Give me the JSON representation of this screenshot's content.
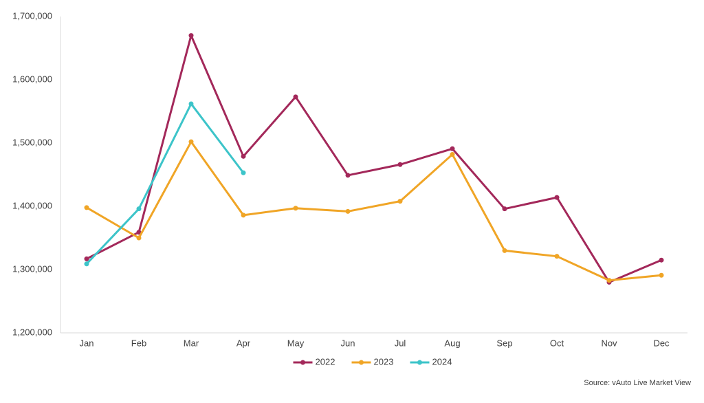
{
  "chart_data": {
    "type": "line",
    "categories": [
      "Jan",
      "Feb",
      "Mar",
      "Apr",
      "May",
      "Jun",
      "Jul",
      "Aug",
      "Sep",
      "Oct",
      "Nov",
      "Dec"
    ],
    "series": [
      {
        "name": "2022",
        "color": "#a3285a",
        "values": [
          1317000,
          1359000,
          1670000,
          1479000,
          1573000,
          1449000,
          1466000,
          1491000,
          1396000,
          1414000,
          1280000,
          1315000
        ]
      },
      {
        "name": "2023",
        "color": "#f0a526",
        "values": [
          1398000,
          1350000,
          1502000,
          1386000,
          1397000,
          1392000,
          1408000,
          1482000,
          1330000,
          1321000,
          1283000,
          1291000
        ]
      },
      {
        "name": "2024",
        "color": "#3cc4c9",
        "values": [
          1309000,
          1396000,
          1562000,
          1453000,
          null,
          null,
          null,
          null,
          null,
          null,
          null,
          null
        ]
      }
    ],
    "ylim": [
      1200000,
      1700000
    ],
    "yticks": [
      {
        "value": 1200000,
        "label": "1,200,000"
      },
      {
        "value": 1300000,
        "label": "1,300,000"
      },
      {
        "value": 1400000,
        "label": "1,400,000"
      },
      {
        "value": 1500000,
        "label": "1,500,000"
      },
      {
        "value": 1600000,
        "label": "1,600,000"
      },
      {
        "value": 1700000,
        "label": "1,700,000"
      }
    ],
    "grid": false,
    "legend": "bottom",
    "source": "Source: vAuto Live Market View"
  }
}
